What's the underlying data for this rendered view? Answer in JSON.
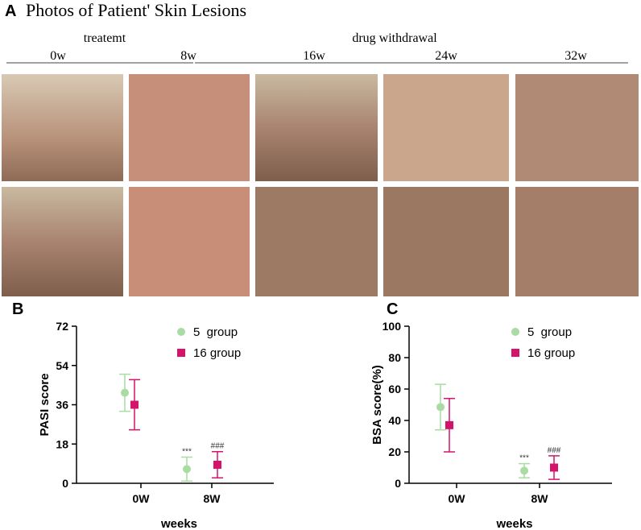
{
  "panel_a": {
    "label": "A",
    "title": "Photos of Patient' Skin Lesions",
    "groups": [
      "treatemt",
      "drug withdrawal"
    ],
    "timepoints": [
      "0w",
      "8w",
      "16w",
      "24w",
      "32w"
    ]
  },
  "chart_data": [
    {
      "type": "errorbar",
      "panel": "B",
      "y_label": "PASI score",
      "x_label": "weeks",
      "categories": [
        "0W",
        "8W"
      ],
      "ylim": [
        0,
        72
      ],
      "yticks": [
        0,
        18,
        36,
        54,
        72
      ],
      "series": [
        {
          "name": "5  group",
          "color": "#a9dca3",
          "marker": "circle",
          "values": [
            41.5,
            6.5
          ],
          "errors": [
            8.5,
            5.5
          ]
        },
        {
          "name": "16 group",
          "color": "#d4146b",
          "marker": "square",
          "values": [
            36,
            8.5
          ],
          "errors": [
            11.5,
            6
          ]
        }
      ],
      "annotations": [
        {
          "text": "***",
          "series": "5  group",
          "category": "8W"
        },
        {
          "text": "###",
          "series": "16 group",
          "category": "8W"
        }
      ]
    },
    {
      "type": "errorbar",
      "panel": "C",
      "y_label": "BSA score(%)",
      "x_label": "weeks",
      "categories": [
        "0W",
        "8W"
      ],
      "ylim": [
        0,
        100
      ],
      "yticks": [
        0,
        20,
        40,
        60,
        80,
        100
      ],
      "series": [
        {
          "name": "5  group",
          "color": "#a9dca3",
          "marker": "circle",
          "values": [
            48.5,
            8
          ],
          "errors": [
            14.5,
            4.5
          ]
        },
        {
          "name": "16 group",
          "color": "#d4146b",
          "marker": "square",
          "values": [
            37,
            10
          ],
          "errors": [
            17,
            7.5
          ]
        }
      ],
      "annotations": [
        {
          "text": "***",
          "series": "5  group",
          "category": "8W"
        },
        {
          "text": "###",
          "series": "16 group",
          "category": "8W"
        }
      ]
    }
  ]
}
